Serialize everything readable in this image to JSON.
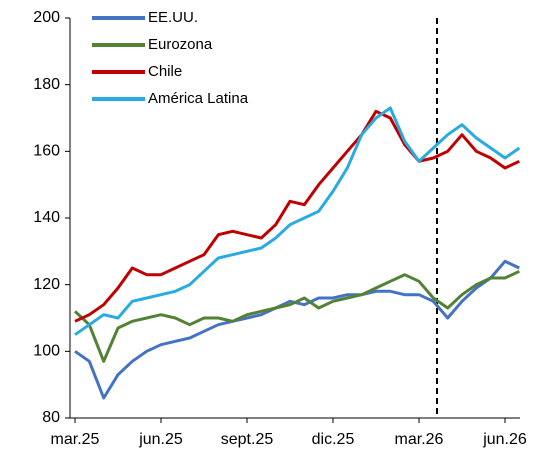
{
  "chart_data": {
    "type": "line",
    "categories": [
      "mar.25",
      null,
      null,
      null,
      null,
      null,
      "jun.25",
      null,
      null,
      null,
      null,
      null,
      "sept.25",
      null,
      null,
      null,
      null,
      null,
      "dic.25",
      null,
      null,
      null,
      null,
      null,
      "mar.26",
      null,
      null,
      null,
      null,
      null,
      "jun.26",
      null
    ],
    "series": [
      {
        "name": "EE.UU.",
        "color": "#4472c4",
        "values": [
          100,
          97,
          86,
          93,
          97,
          100,
          102,
          103,
          104,
          106,
          108,
          109,
          110,
          111,
          113,
          115,
          114,
          116,
          116,
          117,
          117,
          118,
          118,
          117,
          117,
          115,
          110,
          115,
          119,
          122,
          127,
          125
        ]
      },
      {
        "name": "Eurozona",
        "color": "#548235",
        "values": [
          112,
          108,
          97,
          107,
          109,
          110,
          111,
          110,
          108,
          110,
          110,
          109,
          111,
          112,
          113,
          114,
          116,
          113,
          115,
          116,
          117,
          119,
          121,
          123,
          121,
          116,
          113,
          117,
          120,
          122,
          122,
          124
        ]
      },
      {
        "name": "Chile",
        "color": "#c00000",
        "values": [
          109,
          111,
          114,
          119,
          125,
          123,
          123,
          125,
          127,
          129,
          135,
          136,
          135,
          134,
          138,
          145,
          144,
          150,
          155,
          160,
          165,
          172,
          170,
          162,
          157,
          158,
          160,
          165,
          160,
          158,
          155,
          157
        ]
      },
      {
        "name": "América Latina",
        "color": "#29abe2",
        "values": [
          105,
          108,
          111,
          110,
          115,
          116,
          117,
          118,
          120,
          124,
          128,
          129,
          130,
          131,
          134,
          138,
          140,
          142,
          148,
          155,
          165,
          170,
          173,
          163,
          157,
          161,
          165,
          168,
          164,
          161,
          158,
          161
        ]
      }
    ],
    "ylim": [
      80,
      200
    ],
    "yticks": [
      80,
      100,
      120,
      140,
      160,
      180,
      200
    ],
    "grid": false,
    "legend": "top-left"
  }
}
